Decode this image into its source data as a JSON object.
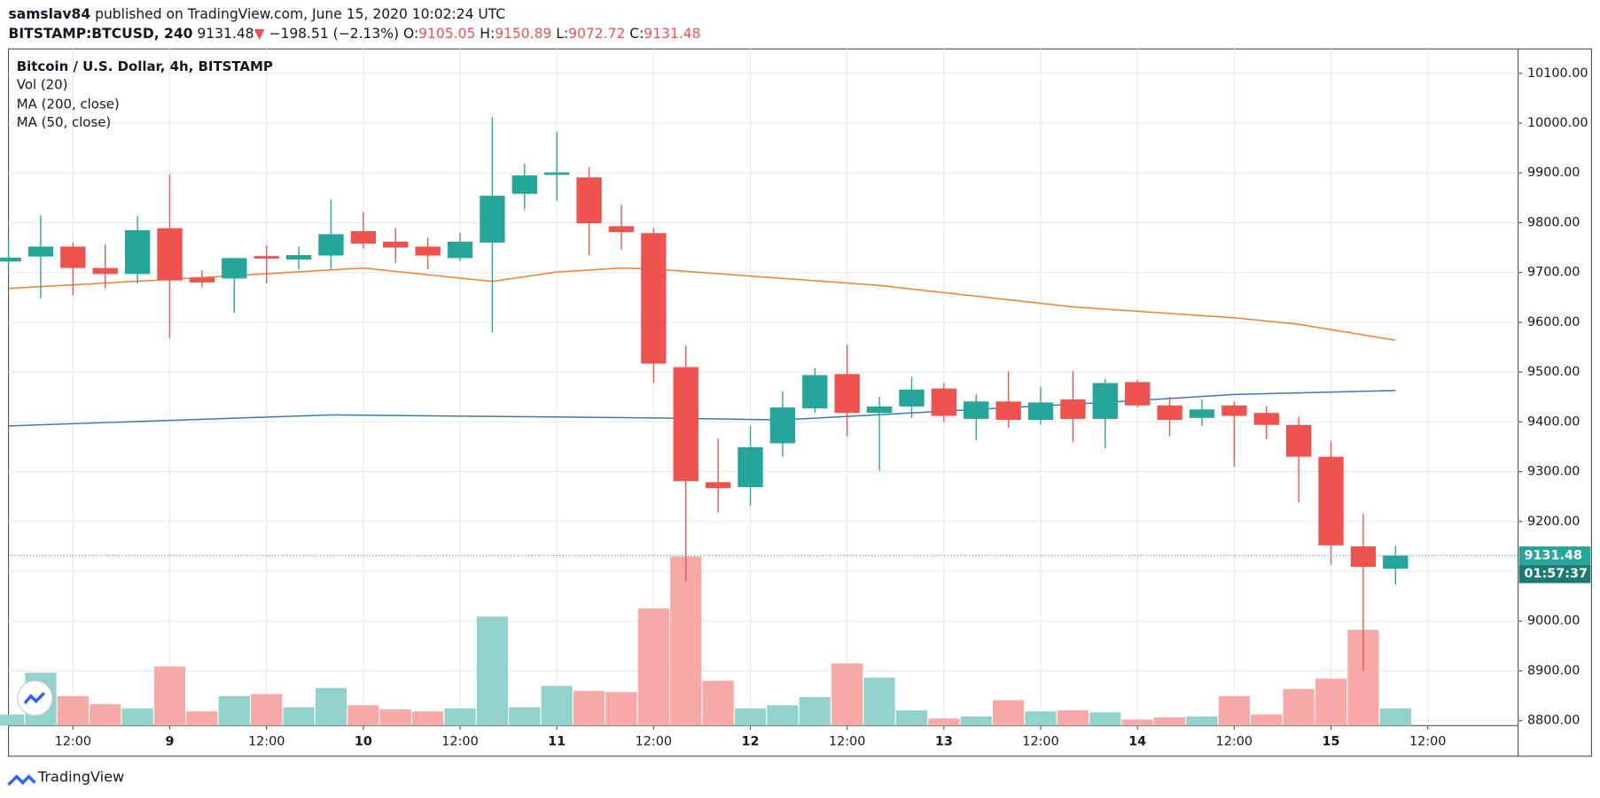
{
  "header": {
    "author": "samslav84",
    "published": "published on TradingView.com, June 15, 2020 10:02:24 UTC",
    "symbol": "BITSTAMP:BTCUSD, 240",
    "last": "9131.48",
    "arrow": "▼",
    "change": "−198.51 (−2.13%)",
    "o_label": "O:",
    "o": "9105.05",
    "h_label": "H:",
    "h": "9150.89",
    "l_label": "L:",
    "l": "9072.72",
    "c_label": "C:",
    "c": "9131.48"
  },
  "chart_data": {
    "type": "candlestick",
    "title": "Bitcoin / U.S. Dollar, 4h, BITSTAMP",
    "volume_name": "Vol (20)",
    "x": [
      0,
      1,
      2,
      3,
      4,
      5,
      6,
      7,
      8,
      9,
      10,
      11,
      12,
      13,
      14,
      15,
      16,
      17,
      18,
      19,
      20,
      21,
      22,
      23,
      24,
      25,
      26,
      27,
      28,
      29,
      30,
      31,
      32,
      33,
      34,
      35,
      36,
      37,
      38,
      39,
      40,
      41,
      42,
      43
    ],
    "open": [
      9722,
      9732,
      9752,
      9709,
      9697,
      9789,
      9690,
      9688,
      9733,
      9726,
      9734,
      9783,
      9762,
      9752,
      9729,
      9760,
      9858,
      9896,
      9891,
      9793,
      9779,
      9510,
      9279,
      9269,
      9357,
      9427,
      9496,
      9418,
      9431,
      9467,
      9406,
      9441,
      9404,
      9445,
      9406,
      9480,
      9433,
      9408,
      9433,
      9418,
      9394,
      9330,
      9150,
      9105.05
    ],
    "high": [
      9765,
      9815,
      9760,
      9756,
      9813,
      9897,
      9705,
      9729,
      9754,
      9752,
      9846,
      9822,
      9789,
      9770,
      9780,
      10012,
      9918,
      9983,
      9912,
      9836,
      9789,
      9553,
      9367,
      9392,
      9461,
      9508,
      9555,
      9451,
      9490,
      9478,
      9455,
      9502,
      9470,
      9502,
      9486,
      9484,
      9451,
      9445,
      9441,
      9431,
      9410,
      9361,
      9216,
      9150.89
    ],
    "low": [
      9712,
      9648,
      9654,
      9668,
      9678,
      9568,
      9670,
      9619,
      9678,
      9706,
      9705,
      9748,
      9719,
      9707,
      9723,
      9580,
      9826,
      9844,
      9734,
      9746,
      9478,
      9081,
      9218,
      9232,
      9330,
      9418,
      9371,
      9302,
      9408,
      9400,
      9363,
      9388,
      9394,
      9359,
      9347,
      9429,
      9371,
      9392,
      9310,
      9365,
      9238,
      9113,
      8900,
      9072.72
    ],
    "close": [
      9730,
      9752,
      9709,
      9697,
      9785,
      9684,
      9680,
      9729,
      9728,
      9735,
      9777,
      9758,
      9750,
      9734,
      9762,
      9854,
      9895,
      9901,
      9799,
      9781,
      9517,
      9281,
      9267,
      9349,
      9429,
      9494,
      9418,
      9431,
      9465,
      9412,
      9441,
      9404,
      9439,
      9406,
      9478,
      9433,
      9404,
      9425,
      9412,
      9394,
      9330,
      9152,
      9109,
      9131.48
    ],
    "volume": [
      11,
      52,
      29,
      21,
      17,
      58,
      14,
      29,
      31,
      18,
      37,
      20,
      16,
      14,
      17,
      107,
      18,
      39,
      34,
      33,
      115,
      166,
      44,
      17,
      20,
      28,
      61,
      47,
      15,
      7,
      9,
      25,
      14,
      15,
      13,
      6,
      8,
      9,
      29,
      11,
      36,
      46,
      94,
      17
    ],
    "up_color": "#26a69a",
    "down_color": "#ef5350",
    "up_volume_color": "#92d2cc",
    "down_volume_color": "#f7a9a7",
    "ma": [
      {
        "name": "MA (200, close)",
        "color": "#3a7ab3",
        "x": [
          0,
          10,
          20,
          24,
          34,
          38,
          43
        ],
        "values": [
          9392,
          9414,
          9408,
          9404,
          9439,
          9455,
          9463
        ]
      },
      {
        "name": "MA (50, close)",
        "color": "#f57f25",
        "x": [
          0,
          5,
          11,
          15,
          17,
          19,
          20,
          27,
          33,
          38,
          40,
          43
        ],
        "values": [
          9668,
          9686,
          9709,
          9682,
          9701,
          9709,
          9707,
          9674,
          9631,
          9609,
          9596,
          9564
        ]
      }
    ],
    "xlim": [
      0,
      46.8
    ],
    "xticks": [
      {
        "value": 2,
        "label": "12:00"
      },
      {
        "value": 5,
        "label": "9"
      },
      {
        "value": 8,
        "label": "12:00"
      },
      {
        "value": 11,
        "label": "10"
      },
      {
        "value": 14,
        "label": "12:00"
      },
      {
        "value": 17,
        "label": "11"
      },
      {
        "value": 20,
        "label": "12:00"
      },
      {
        "value": 23,
        "label": "12"
      },
      {
        "value": 26,
        "label": "12:00"
      },
      {
        "value": 29,
        "label": "13"
      },
      {
        "value": 32,
        "label": "12:00"
      },
      {
        "value": 35,
        "label": "14"
      },
      {
        "value": 38,
        "label": "12:00"
      },
      {
        "value": 41,
        "label": "15"
      },
      {
        "value": 44,
        "label": "12:00"
      }
    ],
    "ylim": [
      8790,
      10149
    ],
    "yticks": [
      {
        "value": 8800,
        "label": "8800.00"
      },
      {
        "value": 8900,
        "label": "8900.00"
      },
      {
        "value": 9000,
        "label": "9000.00"
      },
      {
        "value": 9100,
        "label": "9100.00"
      },
      {
        "value": 9200,
        "label": "9200.00"
      },
      {
        "value": 9300,
        "label": "9300.00"
      },
      {
        "value": 9400,
        "label": "9400.00"
      },
      {
        "value": 9500,
        "label": "9500.00"
      },
      {
        "value": 9600,
        "label": "9600.00"
      },
      {
        "value": 9700,
        "label": "9700.00"
      },
      {
        "value": 9800,
        "label": "9800.00"
      },
      {
        "value": 9900,
        "label": "9900.00"
      },
      {
        "value": 10000,
        "label": "10000.00"
      },
      {
        "value": 10100,
        "label": "10100.00"
      }
    ],
    "countdown": "01:57:37",
    "grid": true
  },
  "footer": {
    "brand": "TradingView"
  }
}
